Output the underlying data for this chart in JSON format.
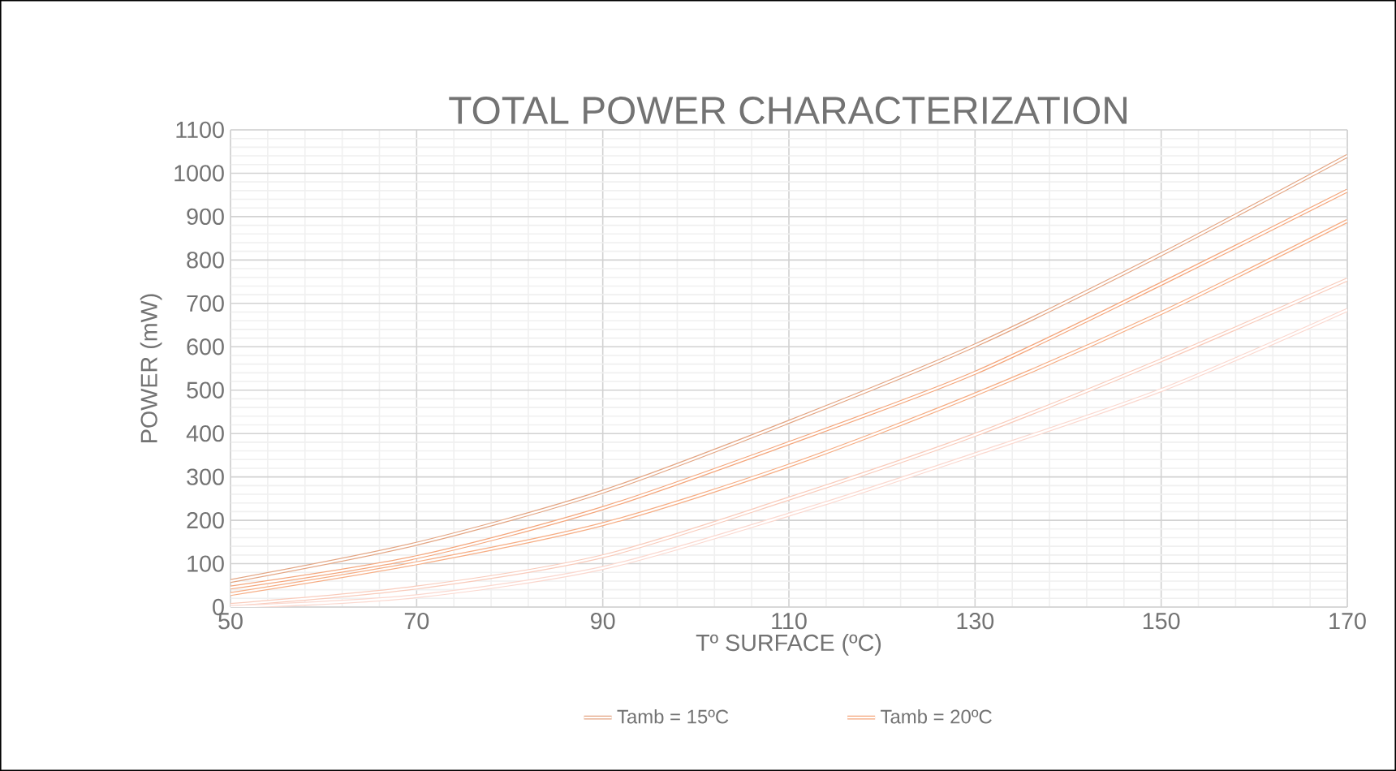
{
  "chart_data": {
    "type": "line",
    "title": "TOTAL POWER CHARACTERIZATION",
    "xlabel": "Tº SURFACE (ºC)",
    "ylabel": "POWER (mW)",
    "x": [
      50,
      70,
      90,
      110,
      130,
      150,
      170
    ],
    "series": [
      {
        "name": "Tamb = 15ºC",
        "color": "#e3a583",
        "values": [
          60,
          146,
          266,
          427,
          603,
          813,
          1040
        ]
      },
      {
        "name": "Tamb = 20ºC",
        "color": "#f4a67c",
        "values": [
          45,
          115,
          228,
          378,
          540,
          745,
          960
        ]
      },
      {
        "color": "#f6ad84",
        "values": [
          30,
          101,
          191,
          326,
          490,
          678,
          890
        ]
      },
      {
        "color": "#f9cbbb",
        "values": [
          5,
          45,
          117,
          250,
          397,
          569,
          755
        ]
      },
      {
        "color": "#fbd8cf",
        "values": [
          0,
          25,
          90,
          213,
          352,
          500,
          685
        ]
      }
    ],
    "xlim": [
      50,
      170
    ],
    "xticks": [
      50,
      70,
      90,
      110,
      130,
      150,
      170
    ],
    "ylim": [
      0,
      1100
    ],
    "yticks": [
      0,
      100,
      200,
      300,
      400,
      500,
      600,
      700,
      800,
      900,
      1000,
      1100
    ],
    "grid": true,
    "legend": "bottom",
    "marker": "none",
    "line_style": "solid"
  }
}
